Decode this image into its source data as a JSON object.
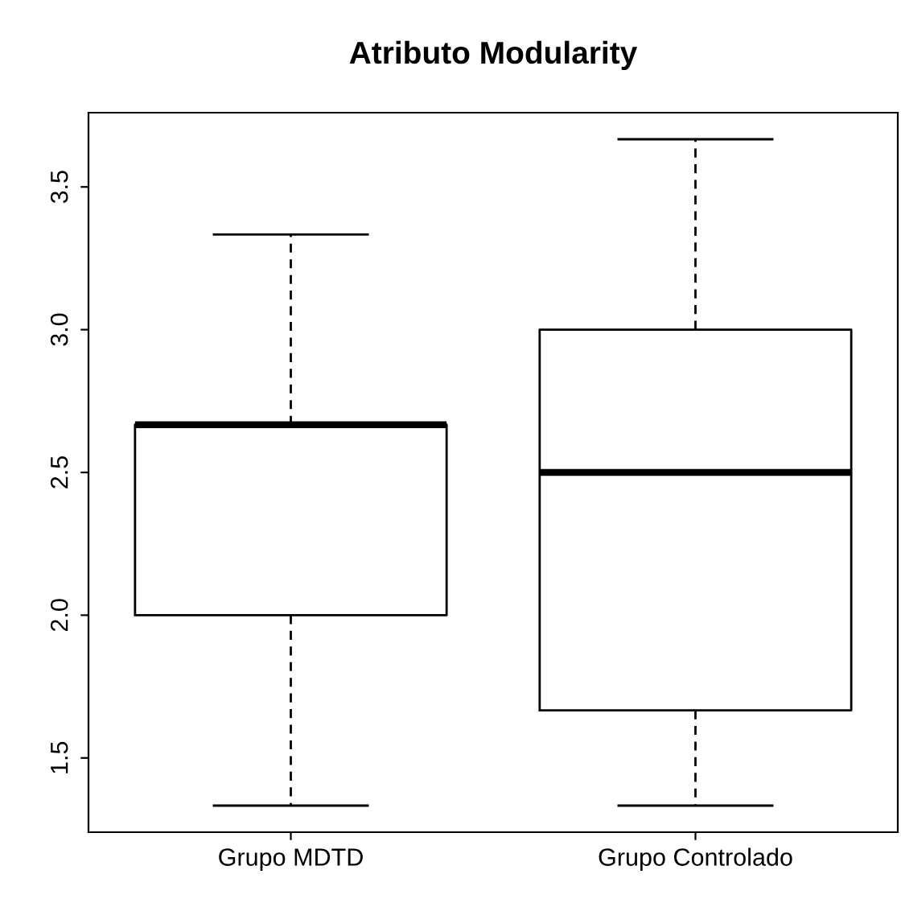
{
  "chart_data": {
    "type": "box",
    "title": "Atributo Modularity",
    "categories": [
      "Grupo MDTD",
      "Grupo Controlado"
    ],
    "boxes": [
      {
        "low": 1.333,
        "q1": 2.0,
        "median": 2.667,
        "q3": 2.667,
        "high": 3.333
      },
      {
        "low": 1.333,
        "q1": 1.667,
        "median": 2.5,
        "q3": 3.0,
        "high": 3.667
      }
    ],
    "ylim": [
      1.24,
      3.76
    ],
    "yticks": [
      1.5,
      {
        "value": 2,
        "label": "2.0"
      },
      2.5,
      {
        "value": 3,
        "label": "3.0"
      },
      3.5
    ],
    "grid": false
  }
}
